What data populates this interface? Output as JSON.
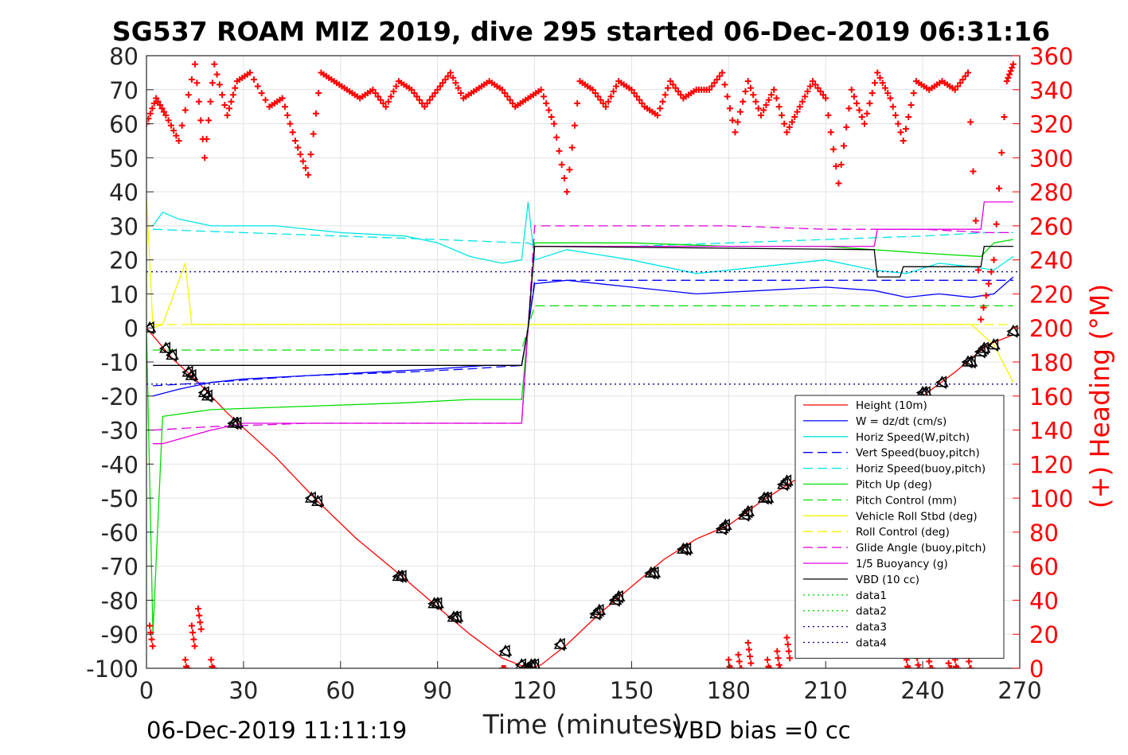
{
  "chart_data": {
    "type": "line",
    "title": "SG537 ROAM MIZ 2019, dive 295 started 06-Dec-2019 06:31:16",
    "xlabel": "Time (minutes)",
    "ylabel_right": "(+) Heading (°M)",
    "footer_left": "06-Dec-2019 11:11:19",
    "footer_right": "VBD bias =0 cc",
    "xlim": [
      0,
      270
    ],
    "ylim": [
      -100,
      80
    ],
    "ylim_right": [
      0,
      360
    ],
    "xticks": [
      0,
      30,
      60,
      90,
      120,
      150,
      180,
      210,
      240,
      270
    ],
    "yticks": [
      -100,
      -90,
      -80,
      -70,
      -60,
      -50,
      -40,
      -30,
      -20,
      -10,
      0,
      10,
      20,
      30,
      40,
      50,
      60,
      70,
      80
    ],
    "yticks_right": [
      0,
      20,
      40,
      60,
      80,
      100,
      120,
      140,
      160,
      180,
      200,
      220,
      240,
      260,
      280,
      300,
      320,
      340,
      360
    ],
    "grid": true,
    "legend_position": "bottom-right",
    "colors": {
      "red": "#ff0000",
      "blue": "#0000ff",
      "cyan": "#00e5e5",
      "green": "#00dd00",
      "yellow": "#f5f500",
      "magenta": "#e000e0",
      "black": "#000000",
      "navy": "#00008b"
    },
    "series": [
      {
        "name": "Height (10m)",
        "color": "#ff0000",
        "dash": "",
        "x": [
          0,
          8,
          15,
          25,
          40,
          53,
          65,
          79,
          90,
          100,
          110,
          118,
          122,
          130,
          140,
          150,
          160,
          170,
          180,
          190,
          200,
          210,
          220,
          230,
          240,
          250,
          260,
          268
        ],
        "y": [
          0,
          -9,
          -15,
          -25,
          -38,
          -51,
          -62,
          -73,
          -82,
          -90,
          -97,
          -100,
          -99,
          -93,
          -84,
          -76,
          -68,
          -62,
          -58,
          -51,
          -45,
          -40,
          -35,
          -27,
          -20,
          -13,
          -5,
          -2
        ]
      },
      {
        "name": "W = dz/dt (cm/s)",
        "color": "#0000ff",
        "dash": "",
        "x": [
          2,
          10,
          20,
          30,
          50,
          70,
          90,
          105,
          116,
          118,
          120,
          130,
          150,
          170,
          190,
          210,
          225,
          235,
          245,
          255,
          262,
          268
        ],
        "y": [
          -20,
          -18,
          -16,
          -15,
          -14,
          -13,
          -12,
          -11,
          -11,
          0,
          13,
          14,
          12,
          10,
          11,
          12,
          11,
          9,
          10,
          9,
          10,
          15
        ]
      },
      {
        "name": "Horiz Speed(W,pitch)",
        "color": "#00e5e5",
        "dash": "",
        "x": [
          2,
          5,
          10,
          20,
          40,
          60,
          80,
          90,
          100,
          110,
          116,
          118,
          120,
          130,
          150,
          170,
          190,
          210,
          225,
          235,
          245,
          255,
          262,
          268
        ],
        "y": [
          30,
          34,
          32,
          30,
          30,
          28,
          27,
          25,
          21,
          19,
          20,
          37,
          20,
          23,
          20,
          16,
          18,
          20,
          17,
          16,
          19,
          18,
          17,
          21
        ]
      },
      {
        "name": "Vert Speed(buoy,pitch)",
        "color": "#0000ff",
        "dash": "12,6",
        "x": [
          2,
          20,
          50,
          80,
          100,
          116,
          118,
          120,
          150,
          180,
          210,
          240,
          260,
          268
        ],
        "y": [
          -17,
          -16,
          -14,
          -13,
          -12,
          -11,
          0,
          14,
          14,
          14,
          14,
          14,
          14,
          14
        ]
      },
      {
        "name": "Horiz Speed(buoy,pitch)",
        "color": "#00e5e5",
        "dash": "12,6",
        "x": [
          2,
          30,
          60,
          90,
          116,
          118,
          120,
          150,
          180,
          210,
          240,
          260,
          268
        ],
        "y": [
          29,
          28,
          27,
          26,
          25,
          25,
          24,
          24,
          25,
          26,
          27,
          28,
          28
        ]
      },
      {
        "name": "Pitch Up (deg)",
        "color": "#00dd00",
        "dash": "",
        "x": [
          0,
          2,
          5,
          20,
          50,
          80,
          100,
          116,
          118,
          120,
          150,
          180,
          210,
          240,
          258,
          262,
          268
        ],
        "y": [
          0,
          -90,
          -26,
          -24,
          -23,
          -22,
          -21,
          -21,
          0,
          25,
          25,
          24,
          24,
          22,
          21,
          25,
          26
        ]
      },
      {
        "name": "Pitch Control (mm)",
        "color": "#00dd00",
        "dash": "12,6",
        "x": [
          2,
          116,
          118,
          120,
          268
        ],
        "y": [
          -6.5,
          -6.5,
          0,
          6.5,
          6.5
        ]
      },
      {
        "name": "Vehicle Roll Stbd (deg)",
        "color": "#f5f500",
        "dash": "",
        "x": [
          0,
          1,
          2,
          5,
          12,
          14,
          15,
          30,
          60,
          90,
          116,
          118,
          120,
          150,
          180,
          210,
          240,
          255,
          262,
          268
        ],
        "y": [
          38,
          20,
          0,
          1,
          19,
          1,
          1,
          1,
          1,
          1,
          1,
          1,
          1,
          1,
          1,
          1,
          1,
          1,
          -5,
          -16
        ]
      },
      {
        "name": "Roll Control (deg)",
        "color": "#f5f500",
        "dash": "12,6",
        "x": [
          2,
          268
        ],
        "y": [
          1,
          1
        ]
      },
      {
        "name": "Glide Angle (buoy,pitch)",
        "color": "#e000e0",
        "dash": "12,6",
        "x": [
          2,
          20,
          50,
          80,
          116,
          118,
          120,
          150,
          180,
          210,
          240,
          260,
          268
        ],
        "y": [
          -30,
          -29,
          -28,
          -28,
          -28,
          0,
          30,
          30,
          30,
          29,
          29,
          28,
          28
        ]
      },
      {
        "name": "1/5 Buoyancy (g)",
        "color": "#e000e0",
        "dash": "",
        "x": [
          2,
          5,
          20,
          30,
          116,
          118,
          120,
          150,
          180,
          210,
          225,
          226,
          258,
          259,
          268
        ],
        "y": [
          -34,
          -34,
          -30,
          -28,
          -28,
          0,
          24,
          24,
          24,
          24,
          24,
          29,
          29,
          37,
          37
        ]
      },
      {
        "name": "VBD (10 cc)",
        "color": "#000000",
        "dash": "",
        "x": [
          2,
          116,
          118,
          120,
          225,
          226,
          233,
          234,
          258,
          259,
          268
        ],
        "y": [
          -11,
          -11,
          0,
          24,
          23,
          15,
          15,
          18,
          18,
          24,
          24
        ]
      },
      {
        "name": "data1",
        "color": "#00dd00",
        "dash": "2,4",
        "x": [],
        "y": []
      },
      {
        "name": "data2",
        "color": "#00dd00",
        "dash": "2,4",
        "x": [],
        "y": []
      },
      {
        "name": "data3",
        "color": "#00008b",
        "dash": "2,4",
        "x": [
          0,
          270
        ],
        "y": [
          16.5,
          16.5
        ]
      },
      {
        "name": "data4",
        "color": "#00008b",
        "dash": "2,4",
        "x": [
          0,
          270
        ],
        "y": [
          -16.5,
          -16.5
        ]
      }
    ],
    "heading": {
      "axis": "right",
      "color": "#ff0000",
      "x": [
        0,
        3,
        6,
        10,
        15,
        18,
        21,
        25,
        28,
        32,
        38,
        42,
        46,
        50,
        54,
        58,
        62,
        66,
        70,
        74,
        78,
        82,
        86,
        90,
        94,
        98,
        102,
        106,
        110,
        114,
        118,
        122,
        126,
        130,
        134,
        138,
        142,
        146,
        150,
        154,
        158,
        162,
        166,
        170,
        174,
        178,
        182,
        186,
        190,
        194,
        198,
        202,
        206,
        210,
        214,
        218,
        222,
        226,
        230,
        234,
        238,
        242,
        246,
        250,
        254,
        258,
        262,
        266,
        268
      ],
      "y": [
        320,
        335,
        325,
        310,
        355,
        300,
        355,
        325,
        345,
        350,
        330,
        335,
        310,
        290,
        350,
        345,
        340,
        335,
        340,
        330,
        345,
        340,
        330,
        340,
        350,
        335,
        340,
        345,
        340,
        330,
        335,
        340,
        320,
        280,
        345,
        340,
        330,
        345,
        340,
        330,
        325,
        345,
        335,
        340,
        340,
        350,
        315,
        345,
        325,
        340,
        315,
        330,
        345,
        335,
        285,
        340,
        320,
        350,
        335,
        310,
        345,
        340,
        345,
        340,
        350,
        205,
        240,
        345,
        355
      ]
    },
    "heading_low_points": {
      "axis": "right",
      "x": [
        1,
        12,
        14,
        16,
        20,
        110,
        180,
        183,
        186,
        192,
        195,
        198,
        235,
        238,
        242,
        248,
        250,
        254
      ],
      "y": [
        25,
        5,
        25,
        35,
        5,
        0,
        5,
        8,
        15,
        5,
        10,
        18,
        5,
        10,
        4,
        3,
        5,
        8
      ]
    },
    "markers": {
      "shape": "triangle",
      "x": [
        1,
        6,
        8,
        13,
        14,
        18,
        19,
        27,
        28,
        51,
        53,
        78,
        79,
        89,
        90,
        95,
        96,
        111,
        116,
        117,
        118,
        119,
        120,
        128,
        139,
        140,
        145,
        146,
        156,
        157,
        166,
        167,
        178,
        179,
        185,
        186,
        191,
        192,
        197,
        198,
        240,
        241,
        246,
        254,
        255,
        258,
        259,
        262,
        268
      ],
      "y": [
        0,
        -6,
        -8,
        -13,
        -14,
        -19,
        -20,
        -28,
        -28,
        -50,
        -51,
        -73,
        -73,
        -81,
        -81,
        -85,
        -85,
        -95,
        -99,
        -100,
        -100,
        -99,
        -99,
        -93,
        -84,
        -83,
        -80,
        -79,
        -72,
        -72,
        -65,
        -65,
        -59,
        -58,
        -55,
        -54,
        -50,
        -50,
        -46,
        -45,
        -19,
        -19,
        -16,
        -10,
        -10,
        -7,
        -6,
        -5,
        -1
      ]
    }
  }
}
